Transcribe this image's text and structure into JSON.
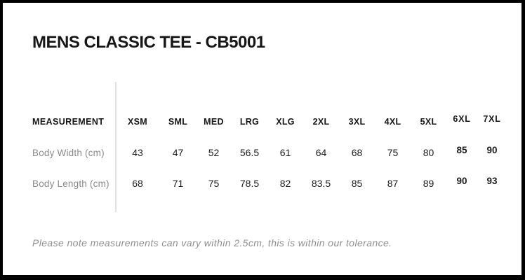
{
  "title": "MENS CLASSIC TEE - CB5001",
  "table": {
    "measurement_header": "MEASUREMENT",
    "sizes": [
      "XSM",
      "SML",
      "MED",
      "LRG",
      "XLG",
      "2XL",
      "3XL",
      "4XL",
      "5XL",
      "6XL",
      "7XL"
    ],
    "rows": [
      {
        "label": "Body Width (cm)",
        "values": [
          "43",
          "47",
          "52",
          "56.5",
          "61",
          "64",
          "68",
          "75",
          "80",
          "85",
          "90"
        ]
      },
      {
        "label": "Body Length (cm)",
        "values": [
          "68",
          "71",
          "75",
          "78.5",
          "82",
          "83.5",
          "85",
          "87",
          "89",
          "90",
          "93"
        ]
      }
    ]
  },
  "footer_note": "Please note measurements can vary within 2.5cm, this is within our tolerance.",
  "colors": {
    "border": "#000000",
    "text": "#161616",
    "muted": "#8a8a8a",
    "divider": "#e0e0e0",
    "note": "#8f8f8f",
    "bg": "#ffffff"
  }
}
